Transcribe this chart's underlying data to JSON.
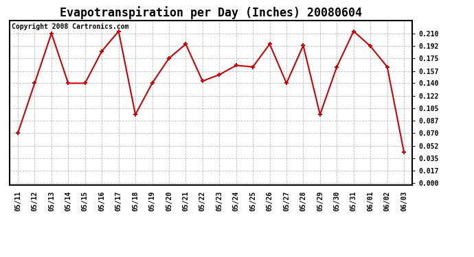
{
  "title": "Evapotranspiration per Day (Inches) 20080604",
  "copyright_text": "Copyright 2008 Cartronics.com",
  "dates": [
    "05/11",
    "05/12",
    "05/13",
    "05/14",
    "05/15",
    "05/16",
    "05/17",
    "05/18",
    "05/19",
    "05/20",
    "05/21",
    "05/22",
    "05/23",
    "05/24",
    "05/25",
    "05/26",
    "05/27",
    "05/28",
    "05/29",
    "05/30",
    "05/31",
    "06/01",
    "06/02",
    "06/03"
  ],
  "values": [
    0.07,
    0.14,
    0.21,
    0.14,
    0.14,
    0.185,
    0.213,
    0.096,
    0.14,
    0.175,
    0.195,
    0.143,
    0.152,
    0.165,
    0.163,
    0.195,
    0.14,
    0.193,
    0.096,
    0.163,
    0.213,
    0.192,
    0.163,
    0.043
  ],
  "line_color": "#cc0000",
  "marker": "+",
  "marker_size": 5,
  "marker_edge_width": 1.5,
  "line_width": 1.5,
  "bg_color": "#ffffff",
  "grid_color": "#bbbbbb",
  "yticks": [
    0.0,
    0.017,
    0.035,
    0.052,
    0.07,
    0.087,
    0.105,
    0.122,
    0.14,
    0.157,
    0.175,
    0.192,
    0.21
  ],
  "ylim": [
    -0.003,
    0.228
  ],
  "title_fontsize": 12,
  "tick_fontsize": 7,
  "copyright_fontsize": 7
}
